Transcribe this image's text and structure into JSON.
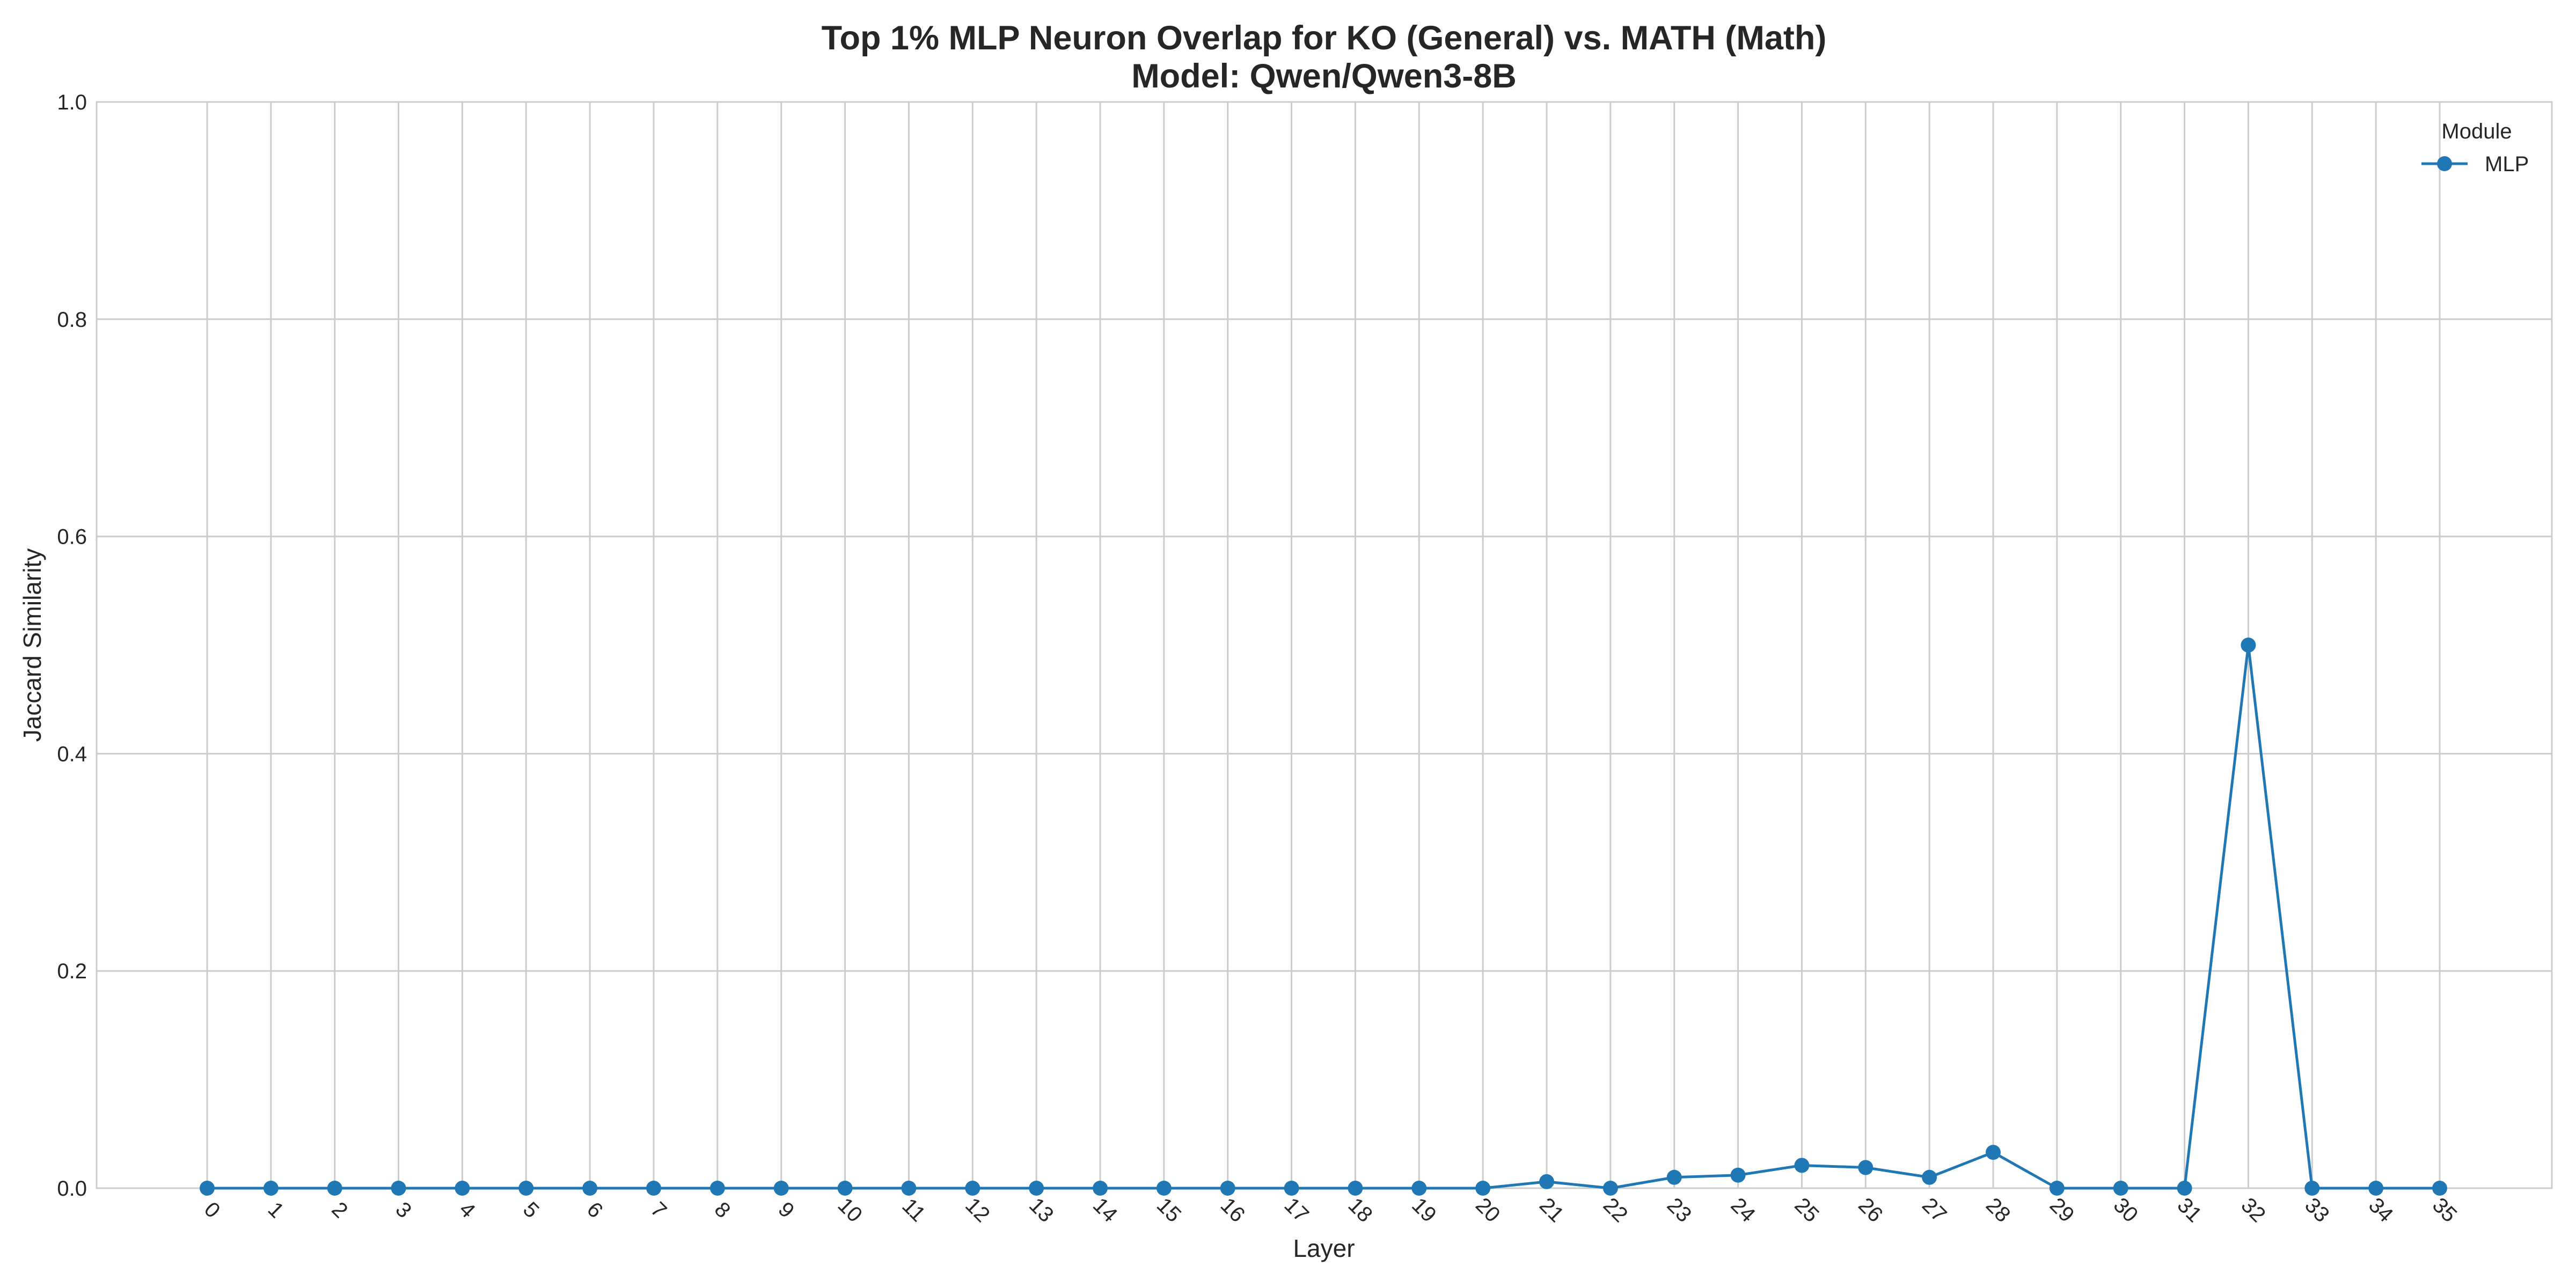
{
  "chart_data": {
    "type": "line",
    "title_line1": "Top 1% MLP Neuron Overlap for KO (General) vs. MATH (Math)",
    "title_line2": "Model: Qwen/Qwen3-8B",
    "xlabel": "Layer",
    "ylabel": "Jaccard Similarity",
    "categories": [
      "0",
      "1",
      "2",
      "3",
      "4",
      "5",
      "6",
      "7",
      "8",
      "9",
      "10",
      "11",
      "12",
      "13",
      "14",
      "15",
      "16",
      "17",
      "18",
      "19",
      "20",
      "21",
      "22",
      "23",
      "24",
      "25",
      "26",
      "27",
      "28",
      "29",
      "30",
      "31",
      "32",
      "33",
      "34",
      "35"
    ],
    "ylim": [
      0,
      1.0
    ],
    "yticks": [
      "0.0",
      "0.2",
      "0.4",
      "0.6",
      "0.8",
      "1.0"
    ],
    "ytick_values": [
      0,
      0.2,
      0.4,
      0.6,
      0.8,
      1.0
    ],
    "grid": true,
    "legend": {
      "title": "Module",
      "placement": "top-right"
    },
    "series": [
      {
        "name": "MLP",
        "color": "#1f77b4",
        "marker": "circle",
        "values": [
          0,
          0,
          0,
          0,
          0,
          0,
          0,
          0,
          0,
          0,
          0,
          0,
          0,
          0,
          0,
          0,
          0,
          0,
          0,
          0,
          0,
          0.006,
          0,
          0.01,
          0.012,
          0.021,
          0.019,
          0.01,
          0.033,
          0,
          0,
          0,
          0.5,
          0,
          0,
          0
        ]
      }
    ]
  }
}
